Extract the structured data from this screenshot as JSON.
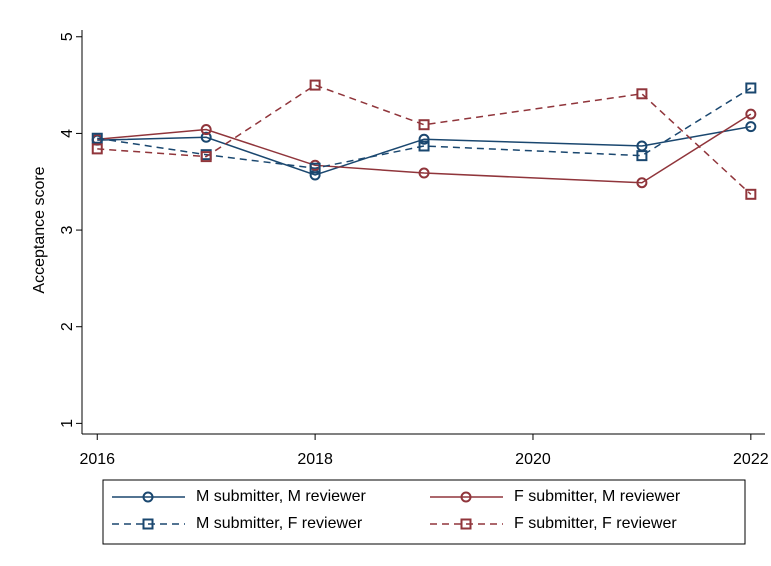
{
  "chart_data": {
    "type": "line",
    "y_label": "Acceptance score",
    "x": [
      2016,
      2017,
      2018,
      2019,
      2021,
      2022
    ],
    "xlim": [
      2015.86,
      2022.13
    ],
    "xticks": [
      2016,
      2018,
      2020,
      2022
    ],
    "ylim": [
      0.89,
      5.07
    ],
    "yticks": [
      1,
      2,
      3,
      4,
      5
    ],
    "grid": false,
    "legend_position": "bottom",
    "series": [
      {
        "name": "M submitter, M reviewer",
        "color": "#1a476f",
        "marker": "circle",
        "dashed": false,
        "values": [
          3.93,
          3.96,
          3.57,
          3.94,
          3.87,
          4.07
        ]
      },
      {
        "name": "F submitter, M reviewer",
        "color": "#90353b",
        "marker": "circle",
        "dashed": false,
        "values": [
          3.94,
          4.04,
          3.67,
          3.59,
          3.49,
          4.2
        ]
      },
      {
        "name": "M submitter, F reviewer",
        "color": "#1a476f",
        "marker": "square",
        "dashed": true,
        "values": [
          3.95,
          3.78,
          3.64,
          3.87,
          3.77,
          4.47
        ]
      },
      {
        "name": "F submitter, F reviewer",
        "color": "#90353b",
        "marker": "square",
        "dashed": true,
        "values": [
          3.84,
          3.76,
          4.5,
          4.09,
          4.41,
          3.37
        ]
      }
    ]
  }
}
